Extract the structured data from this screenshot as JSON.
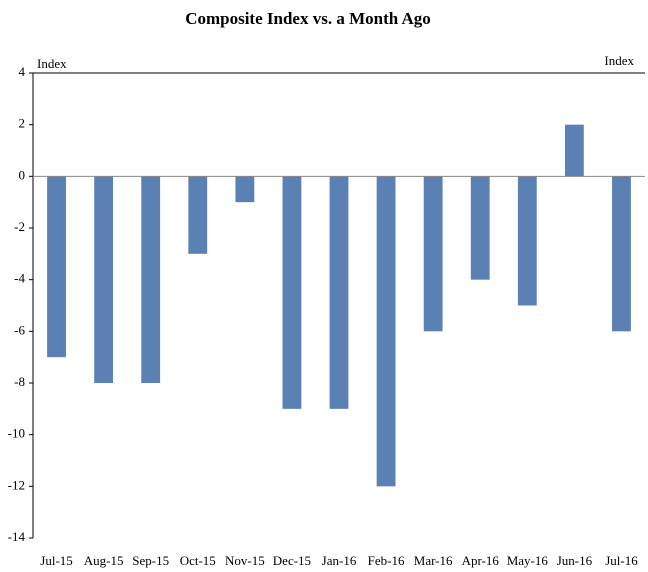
{
  "chart_data": {
    "type": "bar",
    "title": "Composite Index vs. a Month Ago",
    "y_label_left": "Index",
    "y_label_right": "Index",
    "categories": [
      "Jul-15",
      "Aug-15",
      "Sep-15",
      "Oct-15",
      "Nov-15",
      "Dec-15",
      "Jan-16",
      "Feb-16",
      "Mar-16",
      "Apr-16",
      "May-16",
      "Jun-16",
      "Jul-16"
    ],
    "values": [
      -7,
      -8,
      -8,
      -3,
      -1,
      -9,
      -9,
      -12,
      -6,
      -4,
      -5,
      2,
      -6
    ],
    "color": "#5b80b4",
    "ylim": [
      -14,
      4
    ],
    "yticks": [
      -14,
      -12,
      -10,
      -8,
      -6,
      -4,
      -2,
      0,
      2,
      4
    ],
    "grid": false
  }
}
